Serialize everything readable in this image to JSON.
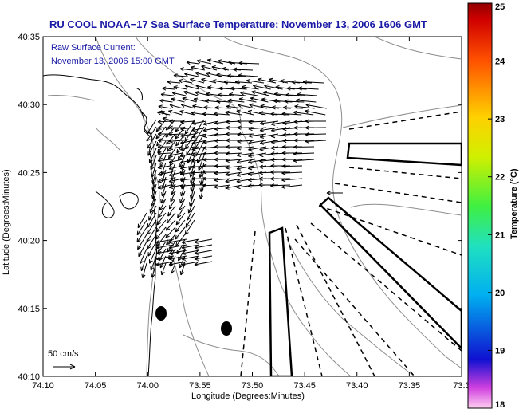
{
  "header": {
    "title": "RU COOL  NOAA−17  Sea Surface Temperature:  November 13, 2006 1606 GMT"
  },
  "annotations": {
    "current_label": "Raw Surface Current:",
    "current_time": "November 13, 2006 15:00 GMT",
    "scale_label": "50 cm/s"
  },
  "axes": {
    "xlabel": "Longitude (Degrees:Minutes)",
    "ylabel": "Latitude (Degrees:Minutes)",
    "xticks": [
      "74:10",
      "74:05",
      "74:00",
      "73:55",
      "73:50",
      "73:45",
      "73:40",
      "73:35",
      "73:3"
    ],
    "yticks": [
      "40:35",
      "40:30",
      "40:25",
      "40:20",
      "40:15",
      "40:10"
    ]
  },
  "colorbar": {
    "label": "Temperature (°C)",
    "ticks": [
      "25",
      "24",
      "23",
      "22",
      "21",
      "20",
      "19",
      "18"
    ],
    "range": [
      18,
      25
    ]
  },
  "colors": {
    "title_text": "#1a1aa6",
    "contour": "#8c8c8c",
    "coast": "#000000"
  }
}
